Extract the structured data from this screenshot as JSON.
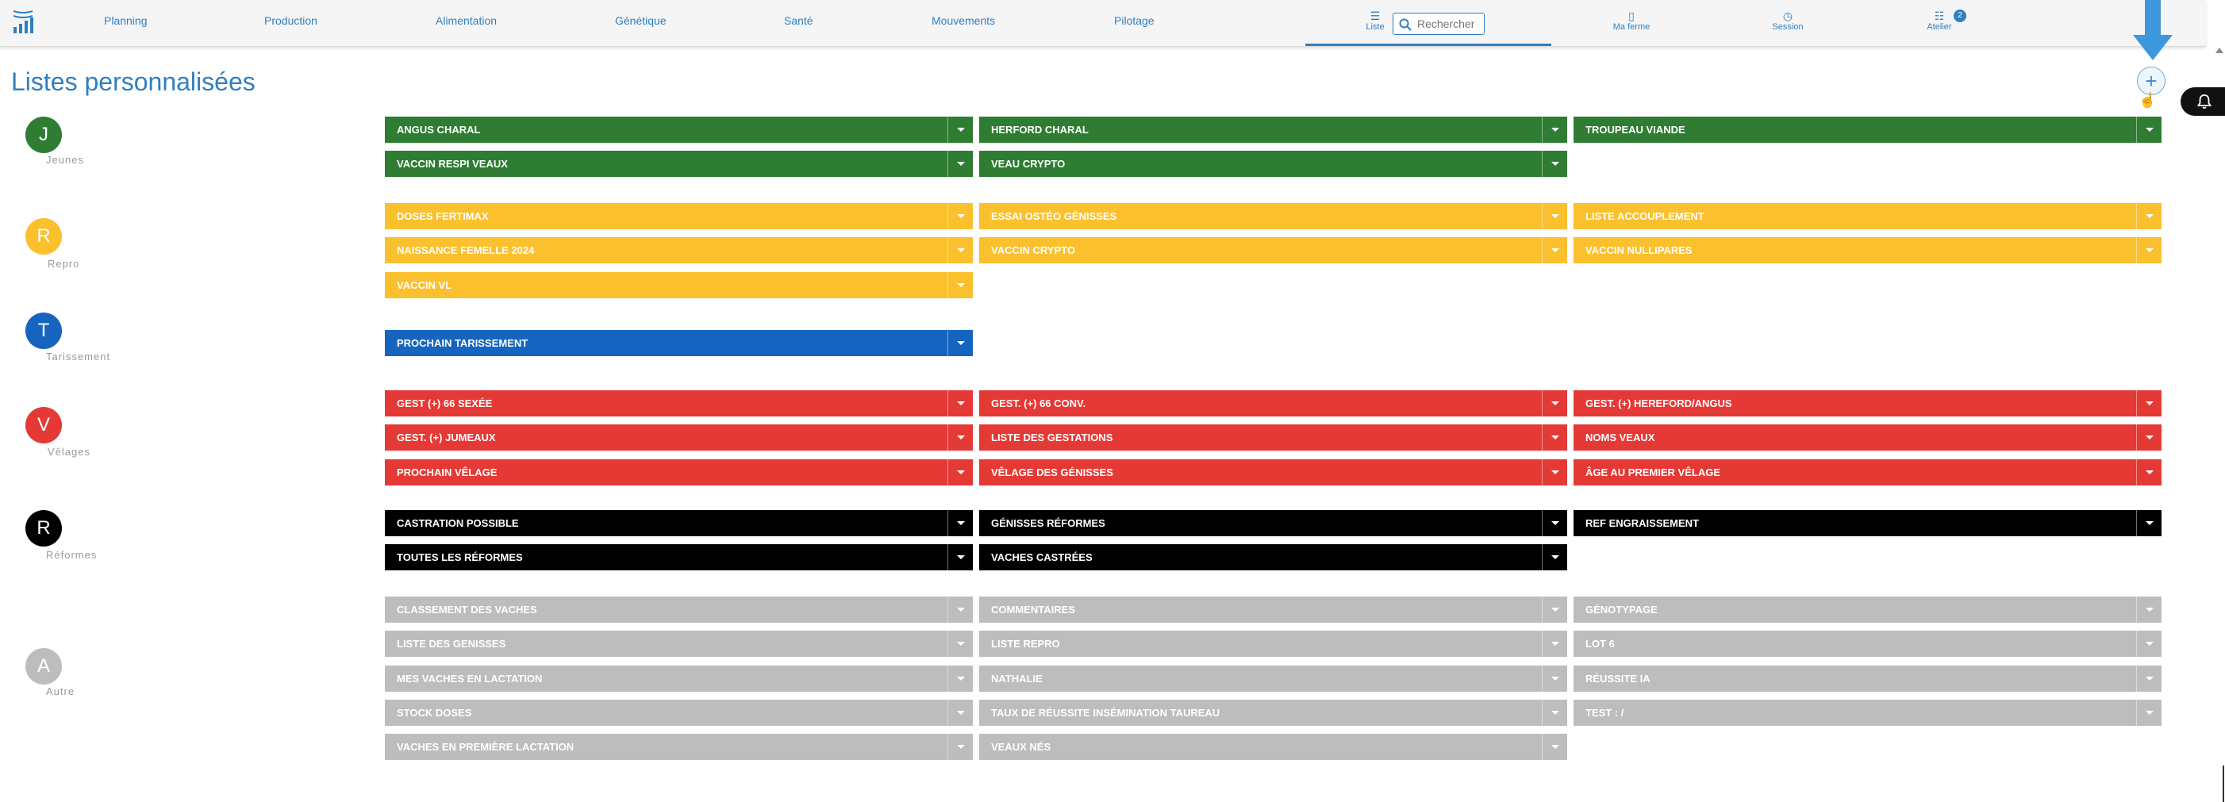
{
  "nav": {
    "items": [
      "Planning",
      "Production",
      "Alimentation",
      "Génétique",
      "Santé",
      "Mouvements",
      "Pilotage"
    ],
    "liste_label": "Liste",
    "search_placeholder": "Rechercher",
    "ma_ferme_label": "Ma ferme",
    "session_label": "Session",
    "atelier_label": "Atelier",
    "atelier_badge": "2"
  },
  "page": {
    "title": "Listes personnalisées"
  },
  "colors": {
    "jeunes": "#2e7d32",
    "repro": "#fbc02d",
    "tarissement": "#1565c0",
    "velages": "#e53935",
    "reformes": "#000000",
    "autre": "#bdbdbd",
    "accent": "#2f7fc1"
  },
  "groups": [
    {
      "letter": "J",
      "label": "Jeunes",
      "color": "#2e7d32",
      "lists": [
        "ANGUS CHARAL",
        "HERFORD CHARAL",
        "TROUPEAU VIANDE",
        "VACCIN RESPI VEAUX",
        "VEAU CRYPTO"
      ]
    },
    {
      "letter": "R",
      "label": "Repro",
      "color": "#fbc02d",
      "lists": [
        "DOSES FERTIMAX",
        "ESSAI OSTÉO GÉNISSES",
        "LISTE ACCOUPLEMENT",
        "NAISSANCE FEMELLE 2024",
        "VACCIN CRYPTO",
        "VACCIN NULLIPARES",
        "VACCIN VL"
      ]
    },
    {
      "letter": "T",
      "label": "Tarissement",
      "color": "#1565c0",
      "lists": [
        "PROCHAIN TARISSEMENT"
      ]
    },
    {
      "letter": "V",
      "label": "Vêlages",
      "color": "#e53935",
      "lists": [
        "GEST (+) 66 SEXÉE",
        "GEST. (+) 66 CONV.",
        "GEST. (+) HEREFORD/ANGUS",
        "GEST. (+) JUMEAUX",
        "LISTE DES GESTATIONS",
        "NOMS VEAUX",
        "PROCHAIN VÊLAGE",
        "VÊLAGE DES GÉNISSES",
        "ÂGE AU PREMIER VÊLAGE"
      ]
    },
    {
      "letter": "R",
      "label": "Réformes",
      "color": "#000000",
      "lists": [
        "CASTRATION POSSIBLE",
        "GÉNISSES RÉFORMES",
        "REF ENGRAISSEMENT",
        "TOUTES LES RÉFORMES",
        "VACHES CASTRÉES"
      ]
    },
    {
      "letter": "A",
      "label": "Autre",
      "color": "#bdbdbd",
      "lists": [
        "CLASSEMENT DES VACHES",
        "COMMENTAIRES",
        "GÉNOTYPAGE",
        "LISTE DES GENISSES",
        "LISTE REPRO",
        "LOT 6",
        "MES VACHES EN LACTATION",
        "NATHALIE",
        "RÉUSSITE IA",
        "STOCK DOSES",
        "TAUX DE RÉUSSITE INSÉMINATION TAUREAU",
        "TEST : /",
        "VACHES EN PREMIÈRE LACTATION",
        "VEAUX NÉS"
      ]
    }
  ]
}
